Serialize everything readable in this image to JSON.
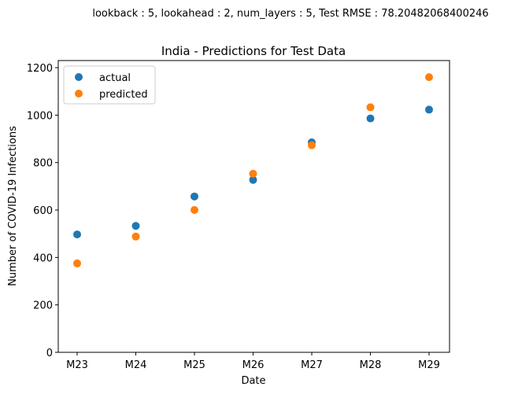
{
  "chart_data": {
    "type": "scatter",
    "suptitle": "lookback : 5, lookahead : 2, num_layers : 5, Test RMSE : 78.20482068400246",
    "title": "India - Predictions for Test Data",
    "xlabel": "Date",
    "ylabel": "Number of COVID-19 Infections",
    "categories": [
      "M23",
      "M24",
      "M25",
      "M26",
      "M27",
      "M28",
      "M29"
    ],
    "ylim": [
      0,
      1230
    ],
    "yticks": [
      0,
      200,
      400,
      600,
      800,
      1000,
      1200
    ],
    "grid": false,
    "legend_position": "top-left",
    "series": [
      {
        "name": "actual",
        "color": "#1f77b4",
        "values": [
          497,
          533,
          657,
          727,
          885,
          986,
          1023
        ]
      },
      {
        "name": "predicted",
        "color": "#ff7f0e",
        "values": [
          375,
          488,
          600,
          753,
          873,
          1033,
          1160
        ]
      }
    ]
  }
}
